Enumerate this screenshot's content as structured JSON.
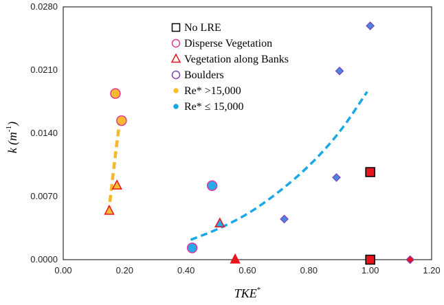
{
  "chart_data": {
    "type": "scatter",
    "xlabel": "TKE",
    "xlabel_sup": "*",
    "ylabel": "k",
    "ylabel_unit": "(m",
    "ylabel_unit_sup": "-1",
    "ylabel_unit_close": ")",
    "xlim": [
      0.0,
      1.2
    ],
    "ylim": [
      0.0,
      0.028
    ],
    "x_ticks": [
      0.0,
      0.2,
      0.4,
      0.6,
      0.8,
      1.0,
      1.2
    ],
    "x_tick_labels": [
      "0.00",
      "0.20",
      "0.40",
      "0.60",
      "0.80",
      "1.00",
      "1.20"
    ],
    "y_ticks": [
      0.0,
      0.007,
      0.014,
      0.021,
      0.028
    ],
    "y_tick_labels": [
      "0.0000",
      "0.0070",
      "0.0140",
      "0.0210",
      "0.0280"
    ],
    "grid": false,
    "legend_position": "top-center",
    "legend": [
      {
        "label": "No LRE",
        "marker": "square",
        "fill": "#ffffff",
        "stroke": "#000000"
      },
      {
        "label": "Disperse Vegetation",
        "marker": "circle",
        "fill": "#ffffff",
        "stroke": "#e0389a"
      },
      {
        "label": "Vegetation along Banks",
        "marker": "triangle",
        "fill": "#ffffff",
        "stroke": "#e8141c"
      },
      {
        "label": "Boulders",
        "marker": "diamond-circle",
        "fill": "#ffffff",
        "stroke": "#7b3fb5"
      },
      {
        "label": "Re* >15,000",
        "marker": "dot",
        "fill": "#f5c02c",
        "stroke": "#f5c02c"
      },
      {
        "label": "Re* ≤ 15,000",
        "marker": "dot",
        "fill": "#1aa7e8",
        "stroke": "#1aa7e8"
      }
    ],
    "series": [
      {
        "group": "high_re",
        "marker": "circle",
        "fill": "#f9b931",
        "stroke": "#e0389a",
        "points": [
          [
            0.17,
            0.0184
          ],
          [
            0.19,
            0.0154
          ]
        ]
      },
      {
        "group": "high_re",
        "marker": "triangle",
        "fill": "#f9b931",
        "stroke": "#e8141c",
        "points": [
          [
            0.15,
            0.0054
          ],
          [
            0.175,
            0.0082
          ]
        ]
      },
      {
        "group": "low_re",
        "marker": "circle",
        "fill": "#29a9e5",
        "stroke": "#e0389a",
        "points": [
          [
            0.42,
            0.0013
          ],
          [
            0.485,
            0.0082
          ]
        ]
      },
      {
        "group": "low_re",
        "marker": "triangle",
        "fill": "#29a9e5",
        "stroke": "#e8141c",
        "points": [
          [
            0.51,
            0.004
          ]
        ]
      },
      {
        "group": "low_re",
        "marker": "triangle",
        "fill": "#e8141c",
        "stroke": "#e8141c",
        "points": [
          [
            0.56,
            0.0
          ]
        ]
      },
      {
        "group": "low_re",
        "marker": "diamond",
        "fill": "#4a86e0",
        "stroke": "#7b3fb5",
        "points": [
          [
            0.72,
            0.0045
          ],
          [
            0.89,
            0.0091
          ],
          [
            0.9,
            0.0209
          ],
          [
            1.0,
            0.0259
          ]
        ]
      },
      {
        "group": "low_re",
        "marker": "diamond",
        "fill": "#e8141c",
        "stroke": "#7b3fb5",
        "points": [
          [
            1.13,
            0.0
          ]
        ]
      },
      {
        "group": "low_re",
        "marker": "square",
        "fill": "#e8141c",
        "stroke": "#000000",
        "points": [
          [
            1.0,
            0.0097
          ],
          [
            1.0,
            0.0
          ]
        ]
      }
    ],
    "trendlines": [
      {
        "group": "high_re",
        "color": "#f5b92a",
        "style": "dashed",
        "points": [
          [
            0.148,
            0.0052
          ],
          [
            0.16,
            0.0088
          ],
          [
            0.172,
            0.0122
          ],
          [
            0.185,
            0.0156
          ]
        ]
      },
      {
        "group": "low_re",
        "color": "#1aa7e8",
        "style": "dashed",
        "points": [
          [
            0.415,
            0.0022
          ],
          [
            0.5,
            0.0033
          ],
          [
            0.6,
            0.005
          ],
          [
            0.7,
            0.0074
          ],
          [
            0.8,
            0.0103
          ],
          [
            0.9,
            0.014
          ],
          [
            0.99,
            0.0186
          ]
        ]
      }
    ]
  }
}
